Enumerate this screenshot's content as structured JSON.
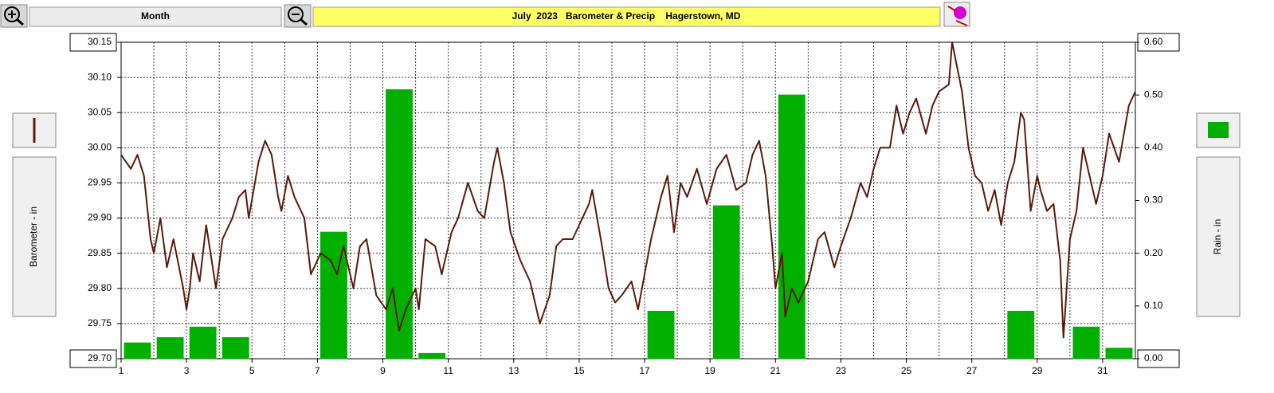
{
  "toolbar": {
    "period": "Month"
  },
  "chart_data": {
    "type": "bar-line",
    "title": "July  2023   Barometer & Precip    Hagerstown, MD",
    "xlim": [
      1,
      32
    ],
    "xticks": [
      1,
      3,
      5,
      7,
      9,
      11,
      13,
      15,
      17,
      19,
      21,
      23,
      25,
      27,
      29,
      31
    ],
    "x_minor_ticks": [
      2,
      4,
      6,
      8,
      10,
      12,
      14,
      16,
      18,
      20,
      22,
      24,
      26,
      28,
      30,
      32
    ],
    "ylim": [
      29.7,
      30.15
    ],
    "yticks": [
      30.15,
      {
        "value": 30.1,
        "label": "30.10"
      },
      30.05,
      {
        "value": 30.0,
        "label": "30.00"
      },
      29.95,
      {
        "value": 29.9,
        "label": "29.90"
      },
      29.85,
      {
        "value": 29.8,
        "label": "29.80"
      },
      29.75,
      {
        "value": 29.7,
        "label": "29.70"
      }
    ],
    "y2lim": [
      0,
      0.6
    ],
    "y2ticks": [
      {
        "value": 0.6,
        "label": "0.60"
      },
      {
        "value": 0.5,
        "label": "0.50"
      },
      {
        "value": 0.4,
        "label": "0.40"
      },
      {
        "value": 0.3,
        "label": "0.30"
      },
      {
        "value": 0.2,
        "label": "0.20"
      },
      {
        "value": 0.1,
        "label": "0.10"
      },
      {
        "value": 0.0,
        "label": "0.00"
      }
    ],
    "grid": true,
    "series": [
      {
        "name": "Rain - in",
        "type": "bar",
        "axis": "y2",
        "color": "#00b000",
        "x": [
          1,
          2,
          3,
          4,
          5,
          6,
          7,
          8,
          9,
          10,
          11,
          12,
          13,
          14,
          15,
          16,
          17,
          18,
          19,
          20,
          21,
          22,
          23,
          24,
          25,
          26,
          27,
          28,
          29,
          30,
          31
        ],
        "values": [
          0.03,
          0.04,
          0.06,
          0.04,
          0,
          0,
          0.24,
          0,
          0.51,
          0.01,
          0,
          0,
          0,
          0,
          0,
          0,
          0.09,
          0,
          0.29,
          0,
          0.5,
          0,
          0,
          0,
          0,
          0,
          0,
          0.09,
          0,
          0.06,
          0.02
        ]
      },
      {
        "name": "Barometer - in",
        "type": "line",
        "color": "#5a1a0a",
        "x": [
          1.0,
          1.3,
          1.5,
          1.7,
          1.9,
          2.0,
          2.2,
          2.4,
          2.6,
          2.9,
          3.0,
          3.1,
          3.2,
          3.4,
          3.6,
          3.9,
          4.1,
          4.4,
          4.6,
          4.8,
          4.9,
          5.2,
          5.4,
          5.6,
          5.8,
          5.9,
          6.1,
          6.3,
          6.6,
          6.8,
          6.9,
          7.1,
          7.4,
          7.6,
          7.8,
          8.1,
          8.3,
          8.5,
          8.8,
          9.1,
          9.3,
          9.5,
          9.7,
          10.0,
          10.1,
          10.3,
          10.6,
          10.8,
          11.1,
          11.3,
          11.6,
          11.9,
          12.1,
          12.4,
          12.5,
          12.7,
          12.9,
          13.2,
          13.5,
          13.8,
          14.1,
          14.3,
          14.5,
          14.8,
          15.1,
          15.3,
          15.4,
          15.7,
          15.9,
          16.1,
          16.3,
          16.6,
          16.8,
          17.2,
          17.5,
          17.7,
          17.9,
          18.1,
          18.3,
          18.6,
          18.9,
          19.2,
          19.5,
          19.8,
          20.1,
          20.3,
          20.5,
          20.7,
          20.9,
          21.0,
          21.2,
          21.3,
          21.5,
          21.7,
          22.0,
          22.3,
          22.5,
          22.8,
          23.0,
          23.3,
          23.6,
          23.8,
          24.0,
          24.2,
          24.5,
          24.7,
          24.9,
          25.1,
          25.3,
          25.6,
          25.8,
          26.0,
          26.3,
          26.4,
          26.7,
          26.9,
          27.1,
          27.3,
          27.5,
          27.7,
          27.9,
          28.1,
          28.3,
          28.5,
          28.6,
          28.8,
          29.0,
          29.1,
          29.3,
          29.5,
          29.7,
          29.8,
          30.0,
          30.2,
          30.4,
          30.6,
          30.8,
          31.0,
          31.2,
          31.5,
          31.8,
          32.0
        ],
        "values": [
          29.99,
          29.97,
          29.99,
          29.96,
          29.87,
          29.85,
          29.9,
          29.83,
          29.87,
          29.8,
          29.77,
          29.8,
          29.85,
          29.81,
          29.89,
          29.8,
          29.87,
          29.9,
          29.93,
          29.94,
          29.9,
          29.98,
          30.01,
          29.99,
          29.93,
          29.91,
          29.96,
          29.93,
          29.9,
          29.82,
          29.83,
          29.85,
          29.84,
          29.82,
          29.86,
          29.8,
          29.86,
          29.87,
          29.79,
          29.77,
          29.8,
          29.74,
          29.77,
          29.8,
          29.77,
          29.87,
          29.86,
          29.82,
          29.88,
          29.9,
          29.95,
          29.91,
          29.9,
          29.98,
          30.0,
          29.95,
          29.88,
          29.84,
          29.81,
          29.75,
          29.79,
          29.86,
          29.87,
          29.87,
          29.9,
          29.92,
          29.94,
          29.86,
          29.8,
          29.78,
          29.79,
          29.81,
          29.77,
          29.87,
          29.93,
          29.96,
          29.88,
          29.95,
          29.93,
          29.97,
          29.92,
          29.97,
          29.99,
          29.94,
          29.95,
          29.99,
          30.01,
          29.96,
          29.86,
          29.8,
          29.85,
          29.76,
          29.8,
          29.78,
          29.81,
          29.87,
          29.88,
          29.83,
          29.86,
          29.9,
          29.95,
          29.93,
          29.97,
          30.0,
          30.0,
          30.06,
          30.02,
          30.05,
          30.07,
          30.02,
          30.06,
          30.08,
          30.09,
          30.15,
          30.08,
          30.0,
          29.96,
          29.95,
          29.91,
          29.94,
          29.89,
          29.95,
          29.98,
          30.05,
          30.04,
          29.91,
          29.96,
          29.94,
          29.91,
          29.92,
          29.84,
          29.73,
          29.87,
          29.91,
          30.0,
          29.96,
          29.92,
          29.96,
          30.02,
          29.98,
          30.06,
          30.08
        ]
      }
    ]
  }
}
